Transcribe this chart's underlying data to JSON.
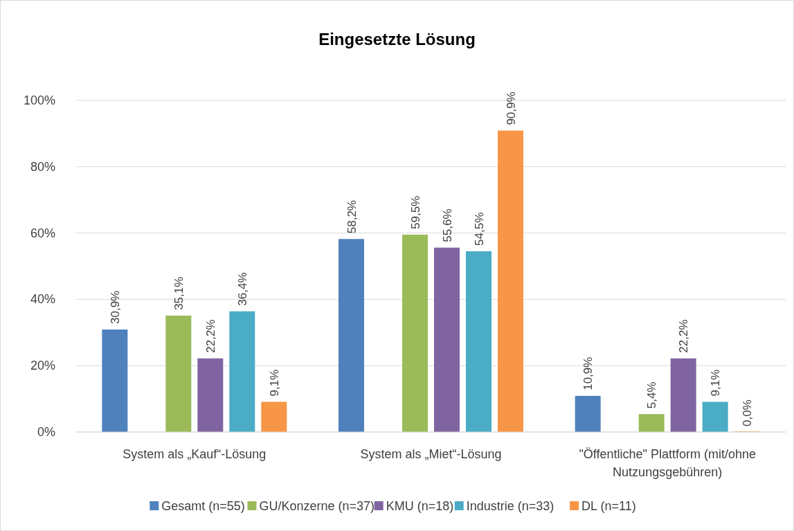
{
  "chart_data": {
    "type": "bar",
    "title": "Eingesetzte Lösung",
    "categories": [
      "System als „Kauf“-Lösung",
      "System als „Miet“-Lösung",
      "\"Öffentliche\" Plattform (mit/ohne Nutzungsgebühren)"
    ],
    "series": [
      {
        "name": "Gesamt (n=55)",
        "color": "#4f81bd",
        "values": [
          30.9,
          58.2,
          10.9
        ],
        "value_labels": [
          "30,9%",
          "58,2%",
          "10,9%"
        ]
      },
      {
        "name": "GU/Konzerne (n=37)",
        "color": "#9bbb59",
        "values": [
          35.1,
          59.5,
          5.4
        ],
        "value_labels": [
          "35,1%",
          "59,5%",
          "5,4%"
        ]
      },
      {
        "name": "KMU (n=18)",
        "color": "#8064a2",
        "values": [
          22.2,
          55.6,
          22.2
        ],
        "value_labels": [
          "22,2%",
          "55,6%",
          "22,2%"
        ]
      },
      {
        "name": "Industrie (n=33)",
        "color": "#4bacc6",
        "values": [
          36.4,
          54.5,
          9.1
        ],
        "value_labels": [
          "36,4%",
          "54,5%",
          "9,1%"
        ]
      },
      {
        "name": "DL (n=11)",
        "color": "#f79646",
        "values": [
          9.1,
          90.9,
          0.0
        ],
        "value_labels": [
          "9,1%",
          "90,9%",
          "0,0%"
        ]
      }
    ],
    "ylim": [
      0,
      100
    ],
    "yticks": [
      {
        "value": 0,
        "label": "0%"
      },
      {
        "value": 20,
        "label": "20%"
      },
      {
        "value": 40,
        "label": "40%"
      },
      {
        "value": 60,
        "label": "60%"
      },
      {
        "value": 80,
        "label": "80%"
      },
      {
        "value": 100,
        "label": "100%"
      }
    ],
    "grid": "y",
    "legend": "bottom"
  }
}
